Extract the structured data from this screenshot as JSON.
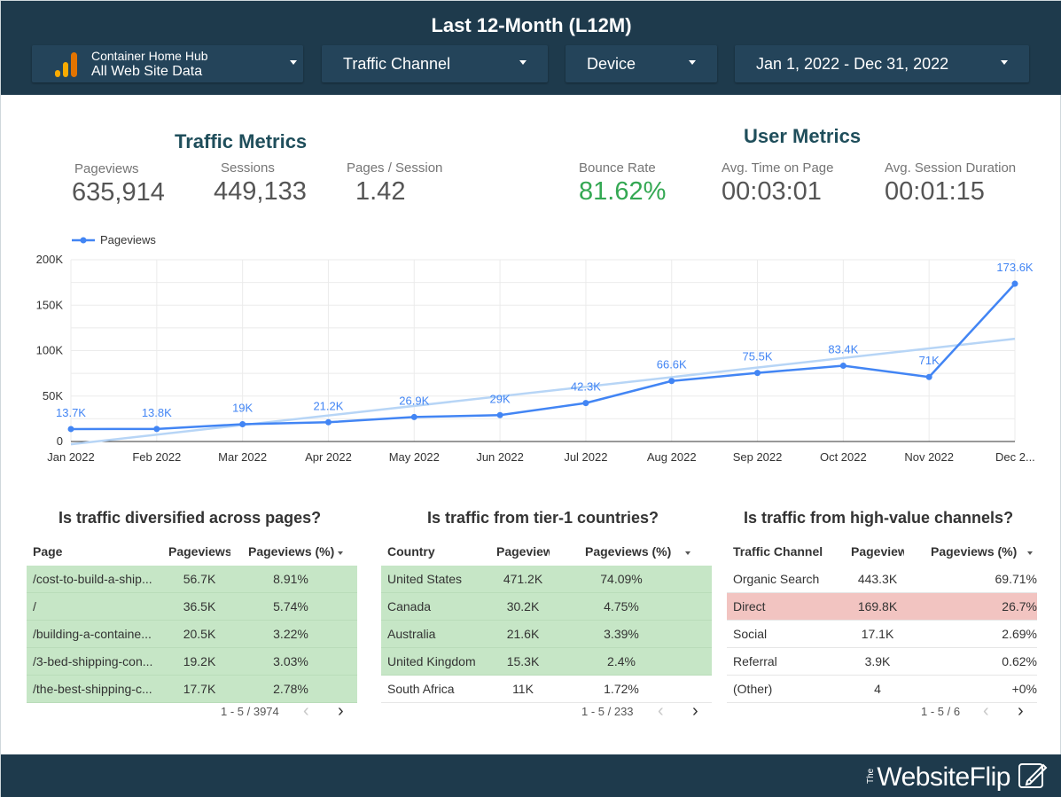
{
  "header": {
    "title": "Last 12-Month (L12M)",
    "data_source": {
      "line1": "Container Home Hub",
      "line2": "All Web Site Data"
    },
    "filters": [
      {
        "label": "Traffic Channel"
      },
      {
        "label": "Device"
      },
      {
        "label": "Jan 1, 2022 - Dec 31, 2022"
      }
    ]
  },
  "traffic_metrics": {
    "title": "Traffic Metrics",
    "items": [
      {
        "label": "Pageviews",
        "value": "635,914"
      },
      {
        "label": "Sessions",
        "value": "449,133"
      },
      {
        "label": "Pages / Session",
        "value": "1.42"
      }
    ]
  },
  "user_metrics": {
    "title": "User Metrics",
    "items": [
      {
        "label": "Bounce Rate",
        "value": "81.62%"
      },
      {
        "label": "Avg. Time on Page",
        "value": "00:03:01"
      },
      {
        "label": "Avg. Session Duration",
        "value": "00:01:15"
      }
    ]
  },
  "chart_data": {
    "type": "line",
    "categories": [
      "Jan 2022",
      "Feb 2022",
      "Mar 2022",
      "Apr 2022",
      "May 2022",
      "Jun 2022",
      "Jul 2022",
      "Aug 2022",
      "Sep 2022",
      "Oct 2022",
      "Nov 2022",
      "Dec 2..."
    ],
    "series": [
      {
        "name": "Pageviews",
        "values": [
          13700,
          13800,
          19000,
          21200,
          26900,
          29000,
          42300,
          66600,
          75500,
          83400,
          71000,
          173600
        ],
        "labels": [
          "13.7K",
          "13.8K",
          "19K",
          "21.2K",
          "26.9K",
          "29K",
          "42.3K",
          "66.6K",
          "75.5K",
          "83.4K",
          "71K",
          "173.6K"
        ]
      }
    ],
    "trendline": {
      "start": -3000,
      "end": 113000
    },
    "yticks": [
      "0",
      "50K",
      "100K",
      "150K",
      "200K"
    ],
    "ylim": [
      0,
      200000
    ],
    "legend_position": "top-left",
    "grid": true,
    "colors": {
      "line": "#4285f4",
      "trend": "#b7d5f6",
      "grid": "#ebebeb"
    }
  },
  "tables": [
    {
      "title": "Is traffic diversified across pages?",
      "headers": [
        "Page",
        "Pageviews",
        "Pageviews (%)"
      ],
      "rows": [
        [
          "/cost-to-build-a-ship...",
          "56.7K",
          "8.91%"
        ],
        [
          "/",
          "36.5K",
          "5.74%"
        ],
        [
          "/building-a-containe...",
          "20.5K",
          "3.22%"
        ],
        [
          "/3-bed-shipping-con...",
          "19.2K",
          "3.03%"
        ],
        [
          "/the-best-shipping-c...",
          "17.7K",
          "2.78%"
        ]
      ],
      "pager": "1 - 5 / 3974"
    },
    {
      "title": "Is traffic from tier-1 countries?",
      "headers": [
        "Country",
        "Pageviews",
        "Pageviews (%)"
      ],
      "rows": [
        [
          "United States",
          "471.2K",
          "74.09%"
        ],
        [
          "Canada",
          "30.2K",
          "4.75%"
        ],
        [
          "Australia",
          "21.6K",
          "3.39%"
        ],
        [
          "United Kingdom",
          "15.3K",
          "2.4%"
        ],
        [
          "South Africa",
          "11K",
          "1.72%"
        ]
      ],
      "pager": "1 - 5 / 233"
    },
    {
      "title": "Is traffic from high-value channels?",
      "headers": [
        "Traffic Channel",
        "Pageviews",
        "Pageviews (%)"
      ],
      "rows": [
        [
          "Organic Search",
          "443.3K",
          "69.71%"
        ],
        [
          "Direct",
          "169.8K",
          "26.7%"
        ],
        [
          "Social",
          "17.1K",
          "2.69%"
        ],
        [
          "Referral",
          "3.9K",
          "0.62%"
        ],
        [
          "(Other)",
          "4",
          "+0%"
        ]
      ],
      "pager": "1 - 5 / 6"
    }
  ],
  "footer": {
    "brand_prefix": "The",
    "brand": "WebsiteFlip"
  }
}
